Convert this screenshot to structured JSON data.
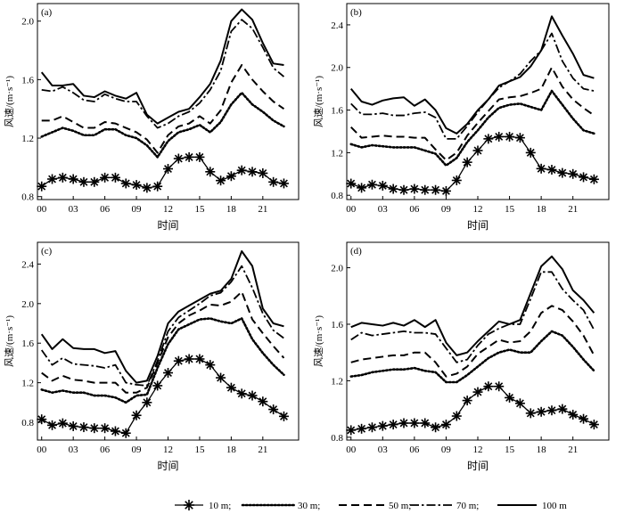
{
  "xlabel": "时间",
  "ylabel": "风速/(m·s⁻¹)",
  "x_ticks": [
    "00",
    "03",
    "06",
    "09",
    "12",
    "15",
    "18",
    "21"
  ],
  "legend": {
    "placement": "bottom",
    "entries": [
      "10 m;",
      "30 m;",
      "50 m;",
      "70 m;",
      "100 m"
    ]
  },
  "series_styles": [
    {
      "name": "10 m",
      "style": "asterisk-markers"
    },
    {
      "name": "30 m",
      "style": "dotted"
    },
    {
      "name": "50 m",
      "style": "dashed"
    },
    {
      "name": "70 m",
      "style": "dash-dot"
    },
    {
      "name": "100 m",
      "style": "solid"
    }
  ],
  "chart_data": [
    {
      "type": "line",
      "panel_label": "(a)",
      "x": [
        0,
        1,
        2,
        3,
        4,
        5,
        6,
        7,
        8,
        9,
        10,
        11,
        12,
        13,
        14,
        15,
        16,
        17,
        18,
        19,
        20,
        21,
        22,
        23
      ],
      "ylim": [
        0.78,
        2.12
      ],
      "yticks": [
        "0.8",
        "1.2",
        "1.6",
        "2.0"
      ],
      "ytick_values": [
        0.8,
        1.2,
        1.6,
        2.0
      ],
      "series": [
        {
          "name": "10 m",
          "values": [
            0.87,
            0.92,
            0.93,
            0.92,
            0.9,
            0.9,
            0.93,
            0.93,
            0.89,
            0.88,
            0.86,
            0.87,
            0.99,
            1.06,
            1.07,
            1.07,
            0.97,
            0.91,
            0.94,
            0.98,
            0.97,
            0.96,
            0.9,
            0.89
          ]
        },
        {
          "name": "30 m",
          "values": [
            1.21,
            1.24,
            1.27,
            1.25,
            1.22,
            1.22,
            1.26,
            1.26,
            1.22,
            1.2,
            1.15,
            1.07,
            1.18,
            1.24,
            1.26,
            1.29,
            1.24,
            1.31,
            1.43,
            1.51,
            1.43,
            1.38,
            1.32,
            1.28
          ]
        },
        {
          "name": "50 m",
          "values": [
            1.32,
            1.32,
            1.35,
            1.31,
            1.27,
            1.27,
            1.31,
            1.3,
            1.27,
            1.24,
            1.19,
            1.1,
            1.22,
            1.28,
            1.3,
            1.35,
            1.3,
            1.39,
            1.58,
            1.7,
            1.6,
            1.52,
            1.45,
            1.4
          ]
        },
        {
          "name": "70 m",
          "values": [
            1.53,
            1.52,
            1.55,
            1.51,
            1.46,
            1.45,
            1.5,
            1.47,
            1.45,
            1.45,
            1.35,
            1.27,
            1.3,
            1.35,
            1.38,
            1.44,
            1.53,
            1.66,
            1.93,
            2.01,
            1.95,
            1.82,
            1.68,
            1.62
          ]
        },
        {
          "name": "100 m",
          "values": [
            1.65,
            1.56,
            1.56,
            1.57,
            1.49,
            1.48,
            1.52,
            1.49,
            1.47,
            1.51,
            1.36,
            1.3,
            1.34,
            1.38,
            1.4,
            1.48,
            1.57,
            1.73,
            2.0,
            2.08,
            2.01,
            1.85,
            1.71,
            1.7
          ]
        }
      ]
    },
    {
      "type": "line",
      "panel_label": "(b)",
      "x": [
        0,
        1,
        2,
        3,
        4,
        5,
        6,
        7,
        8,
        9,
        10,
        11,
        12,
        13,
        14,
        15,
        16,
        17,
        18,
        19,
        20,
        21,
        22,
        23
      ],
      "ylim": [
        0.76,
        2.6
      ],
      "yticks": [
        "0.8",
        "1.2",
        "1.6",
        "2.0",
        "2.4"
      ],
      "ytick_values": [
        0.8,
        1.2,
        1.6,
        2.0,
        2.4
      ],
      "series": [
        {
          "name": "10 m",
          "values": [
            0.91,
            0.87,
            0.9,
            0.89,
            0.86,
            0.85,
            0.86,
            0.85,
            0.85,
            0.84,
            0.94,
            1.11,
            1.22,
            1.33,
            1.35,
            1.35,
            1.34,
            1.2,
            1.05,
            1.04,
            1.01,
            1.0,
            0.97,
            0.95
          ]
        },
        {
          "name": "30 m",
          "values": [
            1.28,
            1.25,
            1.27,
            1.26,
            1.25,
            1.25,
            1.25,
            1.22,
            1.19,
            1.08,
            1.15,
            1.3,
            1.41,
            1.53,
            1.62,
            1.65,
            1.66,
            1.63,
            1.6,
            1.78,
            1.65,
            1.52,
            1.41,
            1.38
          ]
        },
        {
          "name": "50 m",
          "values": [
            1.44,
            1.34,
            1.35,
            1.36,
            1.35,
            1.35,
            1.34,
            1.34,
            1.23,
            1.13,
            1.2,
            1.36,
            1.48,
            1.59,
            1.7,
            1.72,
            1.73,
            1.76,
            1.8,
            2.0,
            1.82,
            1.7,
            1.62,
            1.55
          ]
        },
        {
          "name": "70 m",
          "values": [
            1.66,
            1.56,
            1.56,
            1.57,
            1.55,
            1.55,
            1.57,
            1.58,
            1.53,
            1.33,
            1.33,
            1.45,
            1.58,
            1.7,
            1.81,
            1.87,
            1.94,
            2.06,
            2.16,
            2.32,
            2.06,
            1.9,
            1.8,
            1.78
          ]
        },
        {
          "name": "100 m",
          "values": [
            1.8,
            1.68,
            1.65,
            1.69,
            1.71,
            1.72,
            1.64,
            1.7,
            1.6,
            1.43,
            1.38,
            1.47,
            1.6,
            1.7,
            1.83,
            1.87,
            1.91,
            2.01,
            2.16,
            2.48,
            2.3,
            2.13,
            1.93,
            1.9
          ]
        }
      ]
    },
    {
      "type": "line",
      "panel_label": "(c)",
      "x": [
        0,
        1,
        2,
        3,
        4,
        5,
        6,
        7,
        8,
        9,
        10,
        11,
        12,
        13,
        14,
        15,
        16,
        17,
        18,
        19,
        20,
        21,
        22,
        23
      ],
      "ylim": [
        0.62,
        2.62
      ],
      "yticks": [
        "0.8",
        "1.2",
        "1.6",
        "2.0",
        "2.4"
      ],
      "ytick_values": [
        0.8,
        1.2,
        1.6,
        2.0,
        2.4
      ],
      "series": [
        {
          "name": "10 m",
          "values": [
            0.83,
            0.77,
            0.79,
            0.76,
            0.75,
            0.74,
            0.74,
            0.71,
            0.69,
            0.87,
            1.0,
            1.17,
            1.3,
            1.42,
            1.44,
            1.44,
            1.38,
            1.25,
            1.15,
            1.09,
            1.07,
            1.01,
            0.93,
            0.86
          ]
        },
        {
          "name": "30 m",
          "values": [
            1.13,
            1.1,
            1.12,
            1.1,
            1.1,
            1.07,
            1.07,
            1.05,
            1.0,
            1.07,
            1.08,
            1.35,
            1.59,
            1.74,
            1.79,
            1.84,
            1.85,
            1.82,
            1.8,
            1.85,
            1.64,
            1.5,
            1.38,
            1.28
          ]
        },
        {
          "name": "50 m",
          "values": [
            1.3,
            1.22,
            1.27,
            1.23,
            1.22,
            1.2,
            1.2,
            1.2,
            1.1,
            1.1,
            1.15,
            1.4,
            1.66,
            1.8,
            1.88,
            1.93,
            1.99,
            1.98,
            2.02,
            2.12,
            1.84,
            1.7,
            1.57,
            1.45
          ]
        },
        {
          "name": "70 m",
          "values": [
            1.53,
            1.38,
            1.45,
            1.39,
            1.38,
            1.37,
            1.35,
            1.38,
            1.2,
            1.18,
            1.17,
            1.42,
            1.72,
            1.86,
            1.93,
            2.0,
            2.08,
            2.11,
            2.22,
            2.38,
            2.16,
            1.9,
            1.73,
            1.65
          ]
        },
        {
          "name": "100 m",
          "values": [
            1.69,
            1.54,
            1.64,
            1.55,
            1.54,
            1.54,
            1.5,
            1.52,
            1.32,
            1.2,
            1.22,
            1.47,
            1.8,
            1.92,
            1.98,
            2.04,
            2.1,
            2.13,
            2.25,
            2.53,
            2.38,
            1.95,
            1.8,
            1.77
          ]
        }
      ]
    },
    {
      "type": "line",
      "panel_label": "(d)",
      "x": [
        0,
        1,
        2,
        3,
        4,
        5,
        6,
        7,
        8,
        9,
        10,
        11,
        12,
        13,
        14,
        15,
        16,
        17,
        18,
        19,
        20,
        21,
        22,
        23
      ],
      "ylim": [
        0.78,
        2.18
      ],
      "yticks": [
        "0.8",
        "1.2",
        "1.6",
        "2.0"
      ],
      "ytick_values": [
        0.8,
        1.2,
        1.6,
        2.0
      ],
      "series": [
        {
          "name": "10 m",
          "values": [
            0.85,
            0.86,
            0.87,
            0.88,
            0.89,
            0.9,
            0.9,
            0.9,
            0.87,
            0.89,
            0.95,
            1.06,
            1.12,
            1.16,
            1.16,
            1.08,
            1.04,
            0.97,
            0.98,
            0.99,
            1.0,
            0.96,
            0.93,
            0.89
          ]
        },
        {
          "name": "30 m",
          "values": [
            1.23,
            1.24,
            1.26,
            1.27,
            1.28,
            1.28,
            1.29,
            1.27,
            1.26,
            1.19,
            1.19,
            1.24,
            1.3,
            1.36,
            1.4,
            1.42,
            1.4,
            1.4,
            1.48,
            1.55,
            1.52,
            1.44,
            1.35,
            1.27
          ]
        },
        {
          "name": "50 m",
          "values": [
            1.33,
            1.35,
            1.36,
            1.37,
            1.38,
            1.38,
            1.4,
            1.4,
            1.33,
            1.23,
            1.25,
            1.3,
            1.39,
            1.44,
            1.49,
            1.47,
            1.48,
            1.55,
            1.68,
            1.73,
            1.7,
            1.62,
            1.52,
            1.38
          ]
        },
        {
          "name": "70 m",
          "values": [
            1.49,
            1.54,
            1.52,
            1.53,
            1.54,
            1.55,
            1.54,
            1.54,
            1.53,
            1.43,
            1.33,
            1.35,
            1.45,
            1.53,
            1.57,
            1.6,
            1.6,
            1.78,
            1.97,
            1.97,
            1.85,
            1.77,
            1.7,
            1.56
          ]
        },
        {
          "name": "100 m",
          "values": [
            1.58,
            1.61,
            1.6,
            1.59,
            1.61,
            1.59,
            1.63,
            1.58,
            1.63,
            1.47,
            1.38,
            1.4,
            1.48,
            1.55,
            1.62,
            1.6,
            1.63,
            1.82,
            2.01,
            2.08,
            1.99,
            1.84,
            1.77,
            1.68
          ]
        }
      ]
    }
  ]
}
